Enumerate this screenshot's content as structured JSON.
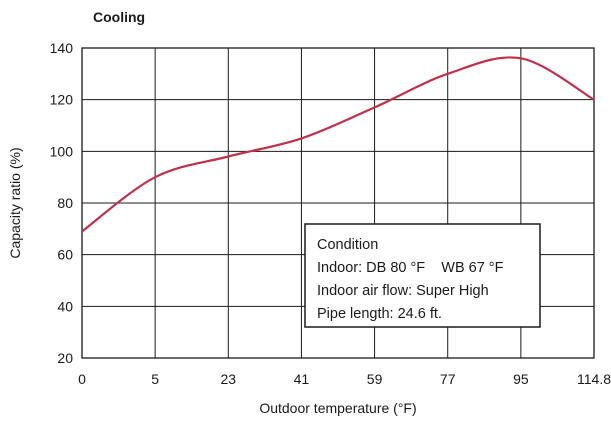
{
  "chart_data": {
    "type": "line",
    "title": "Cooling",
    "xlabel": "Outdoor temperature (°F)",
    "ylabel": "Capacity ratio (%)",
    "x_tick_labels": [
      "0",
      "5",
      "23",
      "41",
      "59",
      "77",
      "95",
      "114.8"
    ],
    "ylim": [
      20,
      140
    ],
    "y_ticks": [
      20,
      40,
      60,
      80,
      100,
      120,
      140
    ],
    "grid": true,
    "series": [
      {
        "color": "#c0304b",
        "points": [
          {
            "x": "0",
            "y": 69
          },
          {
            "x": "5",
            "y": 90
          },
          {
            "x": "23",
            "y": 98
          },
          {
            "x": "41",
            "y": 105
          },
          {
            "x": "59",
            "y": 117
          },
          {
            "x": "77",
            "y": 130
          },
          {
            "x": "95",
            "y": 136
          },
          {
            "x": "114.8",
            "y": 120
          }
        ]
      }
    ],
    "condition_box": {
      "heading": "Condition",
      "lines": [
        "Indoor: DB 80 °F    WB 67 °F",
        "Indoor air flow: Super High",
        "Pipe length: 24.6 ft."
      ]
    }
  }
}
